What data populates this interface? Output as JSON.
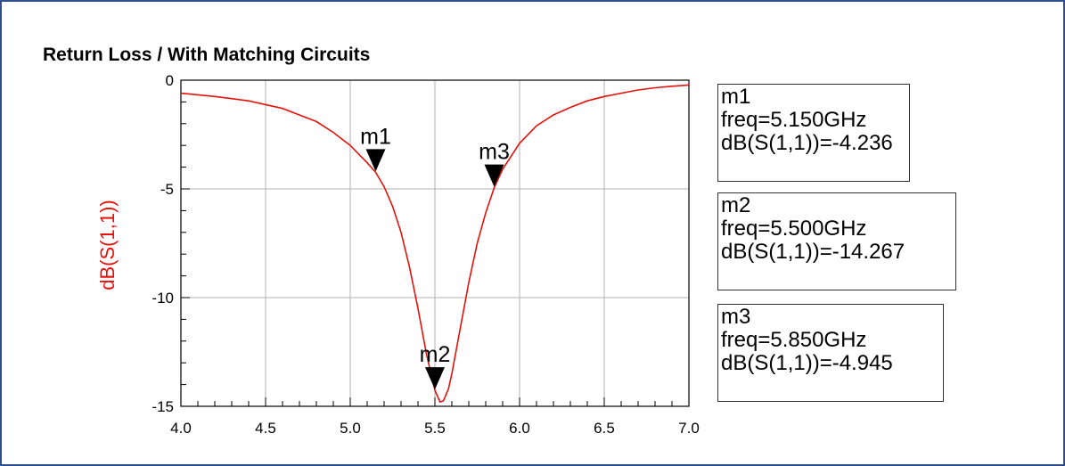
{
  "chart_data": {
    "type": "line",
    "title": "Return Loss / With Matching Circuits",
    "ylabel": "dB(S(1,1))",
    "xlabel": "",
    "xlim": [
      4.0,
      7.0
    ],
    "ylim": [
      -15,
      0
    ],
    "xticks": [
      "4.0",
      "4.5",
      "5.0",
      "5.5",
      "6.0",
      "6.5",
      "7.0"
    ],
    "yticks": [
      "0",
      "-5",
      "-10",
      "-15"
    ],
    "grid": true,
    "line_color": "#e3120b",
    "series": [
      {
        "x": [
          4.0,
          4.2,
          4.4,
          4.6,
          4.8,
          4.9,
          5.0,
          5.05,
          5.1,
          5.15,
          5.2,
          5.25,
          5.3,
          5.35,
          5.4,
          5.45,
          5.5,
          5.53,
          5.55,
          5.58,
          5.6,
          5.65,
          5.7,
          5.75,
          5.8,
          5.85,
          5.9,
          6.0,
          6.1,
          6.2,
          6.3,
          6.4,
          6.5,
          6.6,
          6.7,
          6.8,
          6.9,
          7.0
        ],
        "y": [
          -0.6,
          -0.75,
          -0.95,
          -1.3,
          -1.9,
          -2.4,
          -3.0,
          -3.4,
          -3.8,
          -4.236,
          -4.9,
          -5.8,
          -7.0,
          -8.6,
          -10.5,
          -12.6,
          -14.267,
          -14.8,
          -14.75,
          -14.2,
          -13.5,
          -11.4,
          -9.3,
          -7.5,
          -6.1,
          -4.945,
          -4.1,
          -2.9,
          -2.1,
          -1.6,
          -1.25,
          -0.95,
          -0.75,
          -0.6,
          -0.45,
          -0.35,
          -0.28,
          -0.22
        ]
      }
    ],
    "markers": [
      {
        "name": "m1",
        "x": 5.15,
        "y": -4.236,
        "freq_text": "freq=5.150GHz",
        "value_text": "dB(S(1,1))=-4.236"
      },
      {
        "name": "m2",
        "x": 5.5,
        "y": -14.267,
        "freq_text": "freq=5.500GHz",
        "value_text": "dB(S(1,1))=-14.267"
      },
      {
        "name": "m3",
        "x": 5.85,
        "y": -4.945,
        "freq_text": "freq=5.850GHz",
        "value_text": "dB(S(1,1))=-4.945"
      }
    ]
  }
}
